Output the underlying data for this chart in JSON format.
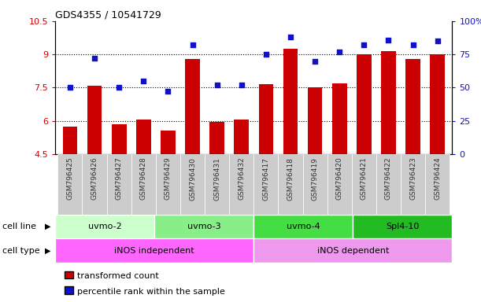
{
  "title": "GDS4355 / 10541729",
  "samples": [
    "GSM796425",
    "GSM796426",
    "GSM796427",
    "GSM796428",
    "GSM796429",
    "GSM796430",
    "GSM796431",
    "GSM796432",
    "GSM796417",
    "GSM796418",
    "GSM796419",
    "GSM796420",
    "GSM796421",
    "GSM796422",
    "GSM796423",
    "GSM796424"
  ],
  "bar_values": [
    5.75,
    7.6,
    5.85,
    6.05,
    5.55,
    8.8,
    5.95,
    6.05,
    7.65,
    9.25,
    7.5,
    7.7,
    9.0,
    9.15,
    8.8,
    9.0
  ],
  "dot_values": [
    50,
    72,
    50,
    55,
    47,
    82,
    52,
    52,
    75,
    88,
    70,
    77,
    82,
    86,
    82,
    85
  ],
  "bar_color": "#CC0000",
  "dot_color": "#1111CC",
  "ylim_left": [
    4.5,
    10.5
  ],
  "ylim_right": [
    0,
    100
  ],
  "yticks_left": [
    4.5,
    6.0,
    7.5,
    9.0,
    10.5
  ],
  "ytick_labels_left": [
    "4.5",
    "6",
    "7.5",
    "9",
    "10.5"
  ],
  "yticks_right": [
    0,
    25,
    50,
    75,
    100
  ],
  "ytick_labels_right": [
    "0",
    "25",
    "50",
    "75",
    "100%"
  ],
  "hlines": [
    6.0,
    7.5,
    9.0
  ],
  "cell_lines": [
    {
      "label": "uvmo-2",
      "start": 0,
      "end": 4,
      "color": "#CCFFCC"
    },
    {
      "label": "uvmo-3",
      "start": 4,
      "end": 8,
      "color": "#88EE88"
    },
    {
      "label": "uvmo-4",
      "start": 8,
      "end": 12,
      "color": "#44DD44"
    },
    {
      "label": "Spl4-10",
      "start": 12,
      "end": 16,
      "color": "#22BB22"
    }
  ],
  "cell_types": [
    {
      "label": "iNOS independent",
      "start": 0,
      "end": 8,
      "color": "#FF66FF"
    },
    {
      "label": "iNOS dependent",
      "start": 8,
      "end": 16,
      "color": "#EE99EE"
    }
  ],
  "legend_bar_label": "transformed count",
  "legend_dot_label": "percentile rank within the sample",
  "cell_line_label": "cell line",
  "cell_type_label": "cell type"
}
